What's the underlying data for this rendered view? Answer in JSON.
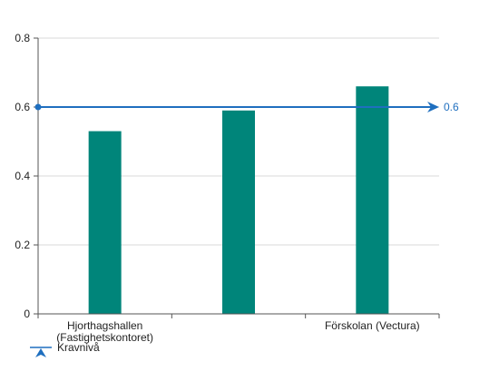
{
  "chart_data": {
    "type": "bar",
    "categories": [
      "Hjorthagshallen (Fastighetskontoret)",
      "",
      "Förskolan (Vectura)"
    ],
    "category_label_lines": [
      [
        "Hjorthagshallen",
        "(Fastighetskontoret)"
      ],
      [
        ""
      ],
      [
        "Förskolan (Vectura)"
      ]
    ],
    "values": [
      0.53,
      0.59,
      0.66
    ],
    "ylim": [
      0,
      0.8
    ],
    "yticks": [
      "0",
      "0.2",
      "0.4",
      "0.6",
      "0.8"
    ],
    "ytick_values": [
      0,
      0.2,
      0.4,
      0.6,
      0.8
    ],
    "grid": true,
    "bar_color": "#00857a",
    "reference_line": {
      "value": 0.6,
      "label": "0.6",
      "color": "#1f6fbf"
    },
    "legend": {
      "placement": "bottom-left",
      "entries": [
        {
          "name": "Kravnivå",
          "color": "#1f6fbf"
        }
      ]
    },
    "title": "",
    "xlabel": "",
    "ylabel": ""
  }
}
